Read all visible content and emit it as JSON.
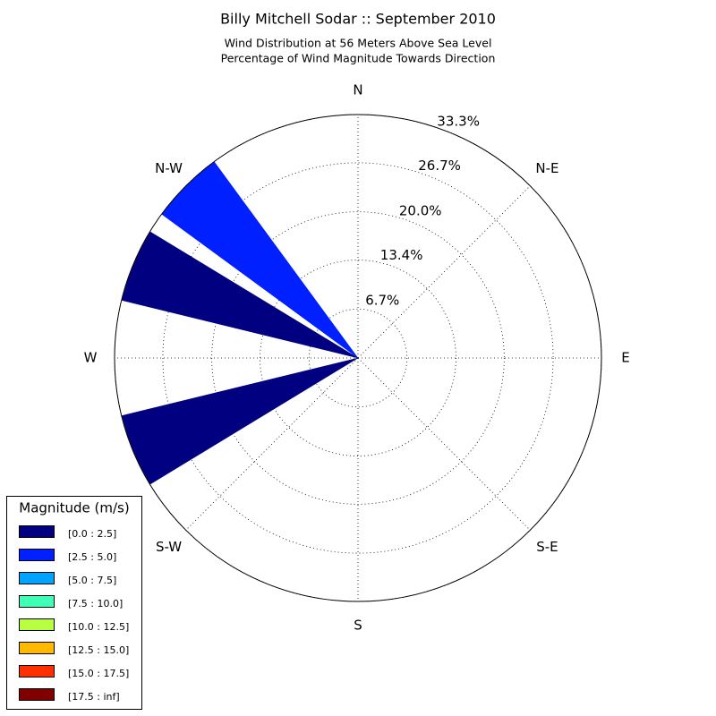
{
  "chart_data": {
    "type": "windrose",
    "title": "Billy Mitchell Sodar :: September 2010",
    "subtitle": [
      "Wind Distribution at 56 Meters Above Sea Level",
      "Percentage of Wind Magnitude Towards Direction"
    ],
    "categories": [
      "N",
      null,
      "N-E",
      null,
      "E",
      null,
      "S-E",
      null,
      "S",
      null,
      "S-W",
      null,
      "W",
      null,
      "N-W",
      null
    ],
    "rlim": [
      0,
      33.3
    ],
    "rticks": [
      {
        "value": 6.7,
        "label": "6.7%"
      },
      {
        "value": 13.4,
        "label": "13.4%"
      },
      {
        "value": 20,
        "label": "20.0%"
      },
      {
        "value": 26.7,
        "label": "26.7%"
      },
      {
        "value": 33.3,
        "label": "33.3%"
      }
    ],
    "grid": true,
    "legend_title": "Magnitude (m/s)",
    "legend": "lower left",
    "series": [
      {
        "name": "[0.0 : 2.5]",
        "color": "#000080",
        "values": [
          0,
          0,
          0,
          0,
          0,
          0,
          0,
          0,
          0,
          0,
          0,
          33.3,
          0,
          33.3,
          0,
          0
        ]
      },
      {
        "name": "[2.5 : 5.0]",
        "color": "#0020ff",
        "values": [
          0,
          0,
          0,
          0,
          0,
          0,
          0,
          0,
          0,
          0,
          0,
          0,
          0,
          0,
          33.3,
          0
        ]
      },
      {
        "name": "[5.0 : 7.5]",
        "color": "#00a4ff",
        "values": [
          0,
          0,
          0,
          0,
          0,
          0,
          0,
          0,
          0,
          0,
          0,
          0,
          0,
          0,
          0,
          0
        ]
      },
      {
        "name": "[7.5 : 10.0]",
        "color": "#40ffb7",
        "values": [
          0,
          0,
          0,
          0,
          0,
          0,
          0,
          0,
          0,
          0,
          0,
          0,
          0,
          0,
          0,
          0
        ]
      },
      {
        "name": "[10.0 : 12.5]",
        "color": "#b7ff40",
        "values": [
          0,
          0,
          0,
          0,
          0,
          0,
          0,
          0,
          0,
          0,
          0,
          0,
          0,
          0,
          0,
          0
        ]
      },
      {
        "name": "[12.5 : 15.0]",
        "color": "#ffb900",
        "values": [
          0,
          0,
          0,
          0,
          0,
          0,
          0,
          0,
          0,
          0,
          0,
          0,
          0,
          0,
          0,
          0
        ]
      },
      {
        "name": "[15.0 : 17.5]",
        "color": "#ff3000",
        "values": [
          0,
          0,
          0,
          0,
          0,
          0,
          0,
          0,
          0,
          0,
          0,
          0,
          0,
          0,
          0,
          0
        ]
      },
      {
        "name": "[17.5 : inf]",
        "color": "#800000",
        "values": [
          0,
          0,
          0,
          0,
          0,
          0,
          0,
          0,
          0,
          0,
          0,
          0,
          0,
          0,
          0,
          0
        ]
      }
    ]
  }
}
